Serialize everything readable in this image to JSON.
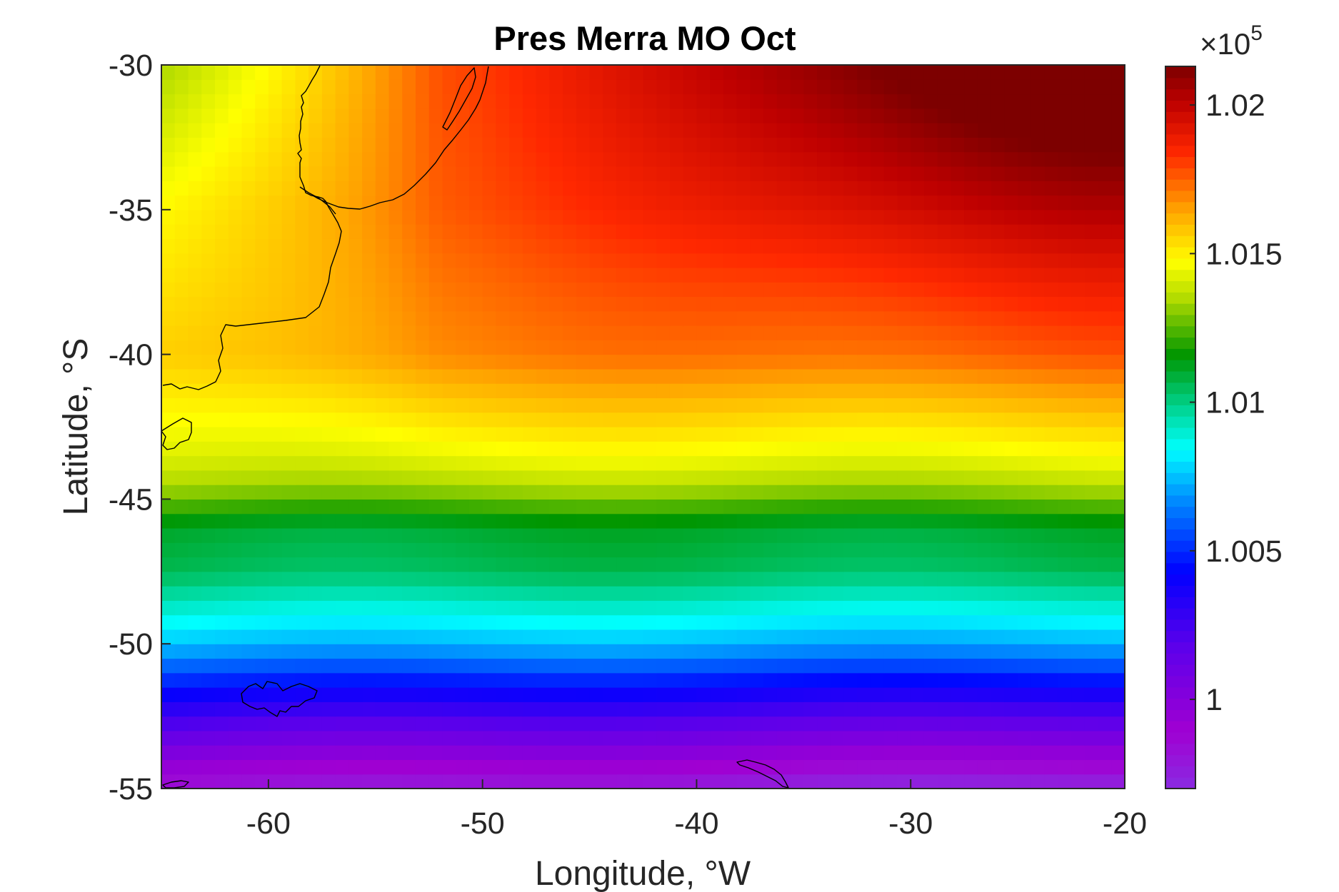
{
  "chart_data": {
    "type": "heatmap",
    "title": "Pres Merra MO Oct",
    "xlabel": "Longitude, °W",
    "ylabel": "Latitude, °S",
    "xlim": [
      -65,
      -20
    ],
    "ylim": [
      -55,
      -30
    ],
    "xticks": [
      -60,
      -50,
      -40,
      -30,
      -20
    ],
    "yticks": [
      -30,
      -35,
      -40,
      -45,
      -50,
      -55
    ],
    "grid_resolution": {
      "lon_step": 0.625,
      "lat_step": 0.5
    },
    "colorbar": {
      "colormap": "jet-like",
      "min": 99700,
      "max": 102130,
      "ticks": [
        100000,
        100500,
        101000,
        101500,
        102000
      ],
      "tick_labels": [
        "1",
        "1.005",
        "1.01",
        "1.015",
        "1.02"
      ],
      "exponent_label": "×10",
      "exponent_power": "5"
    },
    "field_description": "Sea-level pressure: high (~102100) in NE, decreasing southward to ~99800 in SE; green band (~101100) near -46°; yellow (~101450) near -43.5°",
    "land_features": [
      "South America coast (Brazil/Uruguay/Argentina)",
      "Río de la Plata",
      "Falkland Islands",
      "South Georgia"
    ]
  }
}
